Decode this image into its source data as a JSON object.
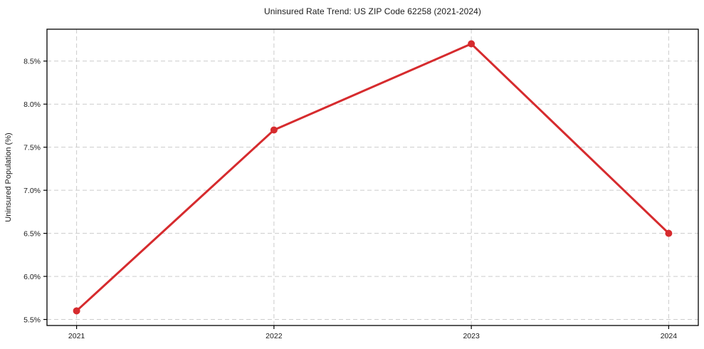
{
  "chart_data": {
    "type": "line",
    "title": "Uninsured Rate Trend: US ZIP Code 62258 (2021-2024)",
    "xlabel": "",
    "ylabel": "Uninsured Population (%)",
    "x": [
      2021,
      2022,
      2023,
      2024
    ],
    "x_tick_labels": [
      "2021",
      "2022",
      "2023",
      "2024"
    ],
    "series": [
      {
        "name": "uninsured-rate",
        "values": [
          5.6,
          7.7,
          8.7,
          6.5
        ]
      }
    ],
    "y_ticks": [
      5.5,
      6.0,
      6.5,
      7.0,
      7.5,
      8.0,
      8.5
    ],
    "y_tick_labels": [
      "5.5%",
      "6.0%",
      "6.5%",
      "7.0%",
      "7.5%",
      "8.0%",
      "8.5%"
    ],
    "ylim": [
      5.43,
      8.87
    ],
    "xlim": [
      2020.85,
      2024.15
    ],
    "grid": true,
    "grid_style": "dashed",
    "legend_position": "none",
    "colors": {
      "line": "#d62b2e",
      "marker": "#d62b2e",
      "grid": "#cccccc",
      "axis": "#000000",
      "tick_text": "#1a1a1a",
      "background": "#ffffff"
    }
  }
}
